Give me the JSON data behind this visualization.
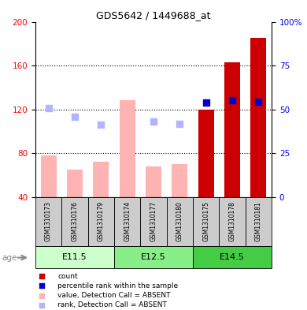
{
  "title": "GDS5642 / 1449688_at",
  "samples": [
    "GSM1310173",
    "GSM1310176",
    "GSM1310179",
    "GSM1310174",
    "GSM1310177",
    "GSM1310180",
    "GSM1310175",
    "GSM1310178",
    "GSM1310181"
  ],
  "groups": [
    {
      "label": "E11.5",
      "indices": [
        0,
        1,
        2
      ],
      "color_light": "#ccffcc",
      "color_dark": "#66dd66"
    },
    {
      "label": "E12.5",
      "indices": [
        3,
        4,
        5
      ],
      "color_light": "#99ee99",
      "color_dark": "#44cc44"
    },
    {
      "label": "E14.5",
      "indices": [
        6,
        7,
        8
      ],
      "color_light": "#44cc44",
      "color_dark": "#22aa22"
    }
  ],
  "value_bars": [
    78,
    65,
    72,
    128,
    68,
    70,
    null,
    null,
    null
  ],
  "rank_markers_left": [
    121,
    113,
    106,
    null,
    109,
    107,
    null,
    null,
    null
  ],
  "count_bars": [
    null,
    null,
    null,
    null,
    null,
    null,
    120,
    163,
    185
  ],
  "percentile_markers_left": [
    null,
    null,
    null,
    null,
    null,
    null,
    126,
    128,
    127
  ],
  "ylim_left": [
    40,
    200
  ],
  "ylim_right": [
    0,
    100
  ],
  "yticks_left": [
    40,
    80,
    120,
    160,
    200
  ],
  "yticks_right": [
    0,
    25,
    50,
    75,
    100
  ],
  "bar_width": 0.6,
  "value_bar_color": "#ffb3b3",
  "rank_marker_color": "#b3b3ff",
  "count_bar_color": "#cc0000",
  "percentile_marker_color": "#0000cc",
  "grid_yticks": [
    80,
    120,
    160
  ],
  "background_sample_box": "#cccccc",
  "age_label": "age",
  "legend_items": [
    {
      "label": "count",
      "color": "#cc0000"
    },
    {
      "label": "percentile rank within the sample",
      "color": "#0000cc"
    },
    {
      "label": "value, Detection Call = ABSENT",
      "color": "#ffb3b3"
    },
    {
      "label": "rank, Detection Call = ABSENT",
      "color": "#b3b3ff"
    }
  ],
  "group_colors": [
    "#ccffcc",
    "#88ee88",
    "#44cc44"
  ]
}
